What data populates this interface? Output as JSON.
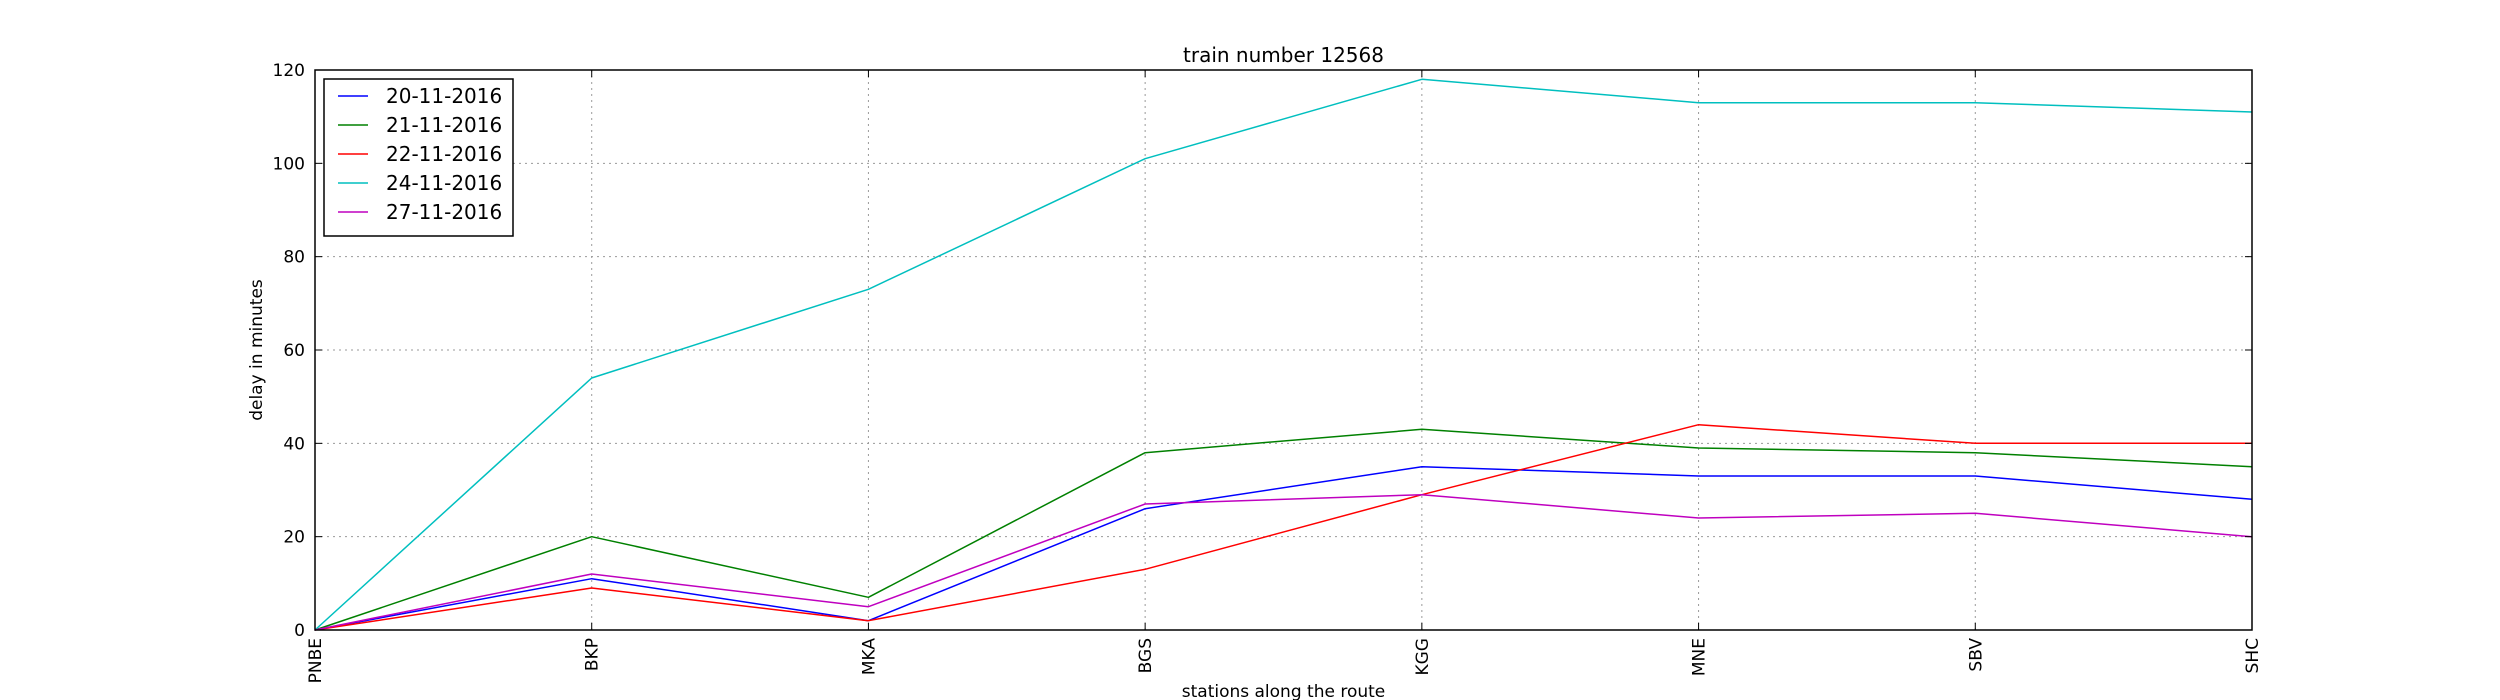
{
  "chart_data": {
    "type": "line",
    "title": "train number 12568",
    "xlabel": "stations along the route",
    "ylabel": "delay in minutes",
    "categories": [
      "PNBE",
      "BKP",
      "MKA",
      "BGS",
      "KGG",
      "MNE",
      "SBV",
      "SHC"
    ],
    "ylim": [
      0,
      120
    ],
    "yticks": [
      "0",
      "20",
      "40",
      "60",
      "80",
      "100",
      "120"
    ],
    "grid": true,
    "legend_position": "top-left",
    "series": [
      {
        "name": "20-11-2016",
        "color": "#0000ff",
        "values": [
          0,
          11,
          2,
          26,
          35,
          33,
          33,
          28
        ]
      },
      {
        "name": "21-11-2016",
        "color": "#008000",
        "values": [
          0,
          20,
          7,
          38,
          43,
          39,
          38,
          35
        ]
      },
      {
        "name": "22-11-2016",
        "color": "#ff0000",
        "values": [
          0,
          9,
          2,
          13,
          29,
          44,
          40,
          40
        ]
      },
      {
        "name": "24-11-2016",
        "color": "#00bfbf",
        "values": [
          0,
          54,
          73,
          101,
          118,
          113,
          113,
          111
        ]
      },
      {
        "name": "27-11-2016",
        "color": "#bf00bf",
        "values": [
          0,
          12,
          5,
          27,
          29,
          24,
          25,
          20
        ]
      }
    ]
  }
}
